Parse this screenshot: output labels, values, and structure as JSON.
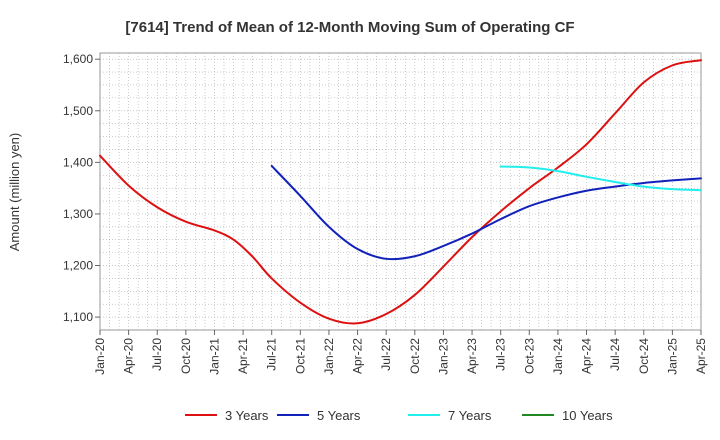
{
  "chart_data": {
    "type": "line",
    "title": "[7614]  Trend of Mean of 12-Month Moving Sum of Operating CF",
    "ylabel": "Amount (million yen)",
    "xlabel": "",
    "ylim": [
      1075,
      1612
    ],
    "yticks": [
      1100,
      1200,
      1300,
      1400,
      1500,
      1600
    ],
    "ytick_labels": [
      "1,100",
      "1,200",
      "1,300",
      "1,400",
      "1,500",
      "1,600"
    ],
    "xticks": [
      "Jan-20",
      "Apr-20",
      "Jul-20",
      "Oct-20",
      "Jan-21",
      "Apr-21",
      "Jul-21",
      "Oct-21",
      "Jan-22",
      "Apr-22",
      "Jul-22",
      "Oct-22",
      "Jan-23",
      "Apr-23",
      "Jul-23",
      "Oct-23",
      "Jan-24",
      "Apr-24",
      "Jul-24",
      "Oct-24",
      "Jan-25",
      "Apr-25"
    ],
    "x_unit": "month index from Jan-20",
    "x_range": [
      0,
      63
    ],
    "grid": true,
    "legend_position": "bottom",
    "series": [
      {
        "name": "3 Years",
        "color": "#dd1111",
        "points": [
          [
            0,
            1413
          ],
          [
            3,
            1355
          ],
          [
            6,
            1313
          ],
          [
            9,
            1285
          ],
          [
            12,
            1268
          ],
          [
            14,
            1250
          ],
          [
            16,
            1217
          ],
          [
            18,
            1175
          ],
          [
            21,
            1128
          ],
          [
            24,
            1097
          ],
          [
            27,
            1088
          ],
          [
            30,
            1106
          ],
          [
            33,
            1143
          ],
          [
            36,
            1198
          ],
          [
            39,
            1255
          ],
          [
            42,
            1305
          ],
          [
            45,
            1350
          ],
          [
            48,
            1390
          ],
          [
            51,
            1435
          ],
          [
            54,
            1495
          ],
          [
            57,
            1555
          ],
          [
            60,
            1588
          ],
          [
            63,
            1598
          ]
        ]
      },
      {
        "name": "5 Years",
        "color": "#1122bb",
        "points": [
          [
            18,
            1393
          ],
          [
            21,
            1335
          ],
          [
            24,
            1275
          ],
          [
            27,
            1232
          ],
          [
            30,
            1213
          ],
          [
            33,
            1218
          ],
          [
            36,
            1238
          ],
          [
            39,
            1262
          ],
          [
            42,
            1290
          ],
          [
            45,
            1315
          ],
          [
            48,
            1332
          ],
          [
            51,
            1345
          ],
          [
            54,
            1353
          ],
          [
            57,
            1360
          ],
          [
            60,
            1365
          ],
          [
            63,
            1369
          ]
        ]
      },
      {
        "name": "7 Years",
        "color": "#22eeee",
        "points": [
          [
            42,
            1392
          ],
          [
            45,
            1390
          ],
          [
            48,
            1383
          ],
          [
            51,
            1372
          ],
          [
            54,
            1362
          ],
          [
            57,
            1353
          ],
          [
            60,
            1348
          ],
          [
            63,
            1346
          ]
        ]
      },
      {
        "name": "10 Years",
        "color": "#228822",
        "points": []
      }
    ]
  }
}
